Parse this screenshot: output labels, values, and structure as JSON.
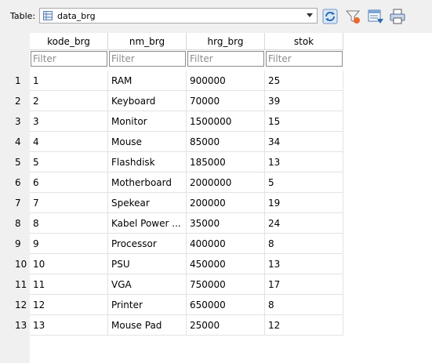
{
  "toolbar": {
    "table_label": "Table:",
    "table_name": "data_brg",
    "icons": [
      "refresh-icon",
      "clear-filter-icon",
      "insert-record-icon",
      "print-icon"
    ]
  },
  "columns": [
    "kode_brg",
    "nm_brg",
    "hrg_brg",
    "stok"
  ],
  "filter_placeholder": "Filter",
  "rows": [
    [
      "1",
      "1",
      "RAM",
      "900000",
      "25"
    ],
    [
      "2",
      "2",
      "Keyboard",
      "70000",
      "39"
    ],
    [
      "3",
      "3",
      "Monitor",
      "1500000",
      "15"
    ],
    [
      "4",
      "4",
      "Mouse",
      "85000",
      "34"
    ],
    [
      "5",
      "5",
      "Flashdisk",
      "185000",
      "13"
    ],
    [
      "6",
      "6",
      "Motherboard",
      "2000000",
      "5"
    ],
    [
      "7",
      "7",
      "Spekear",
      "200000",
      "19"
    ],
    [
      "8",
      "8",
      "Kabel Power ...",
      "35000",
      "24"
    ],
    [
      "9",
      "9",
      "Processor",
      "400000",
      "8"
    ],
    [
      "10",
      "10",
      "PSU",
      "450000",
      "13"
    ],
    [
      "11",
      "11",
      "VGA",
      "750000",
      "17"
    ],
    [
      "12",
      "12",
      "Printer",
      "650000",
      "8"
    ],
    [
      "13",
      "13",
      "Mouse Pad",
      "25000",
      "12"
    ]
  ]
}
